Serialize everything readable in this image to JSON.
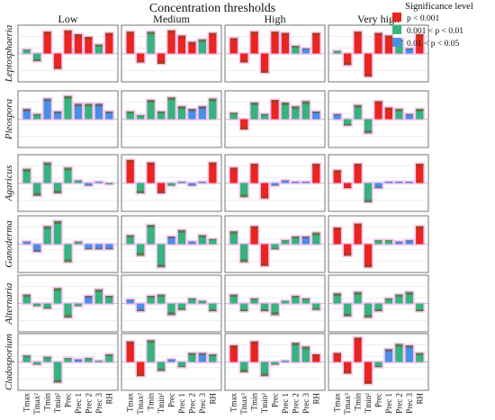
{
  "chart_data": {
    "type": "bar",
    "title": "Concentration thresholds",
    "panel_columns": [
      "Low",
      "Medium",
      "High",
      "Very high"
    ],
    "panel_rows": [
      "Leptosphaeria",
      "Pleospora",
      "Agaricus",
      "Ganoderma",
      "Alternaria",
      "Cladosporium"
    ],
    "categories": [
      "Tmax",
      "Tmax²",
      "Tmin",
      "Tmin²",
      "Prec",
      "Prec 1",
      "Prec 2",
      "Prec 3",
      "RH"
    ],
    "legend": {
      "title": "Significance level",
      "entries": [
        {
          "label": "p < 0.001",
          "color": "#e8261f"
        },
        {
          "label": "0.001 < p < 0.01",
          "color": "#36b37e"
        },
        {
          "label": "0.01 < p < 0.05",
          "color": "#4a8fe6"
        }
      ]
    },
    "series_colors": [
      "#e8261f",
      "#36b37e",
      "#4a8fe6"
    ],
    "accent_colors": {
      "outline": "#f6c6f2",
      "lag_marker": "#7a4a1a"
    },
    "ylim": [
      -1,
      1
    ],
    "panels": [
      [
        {
          "values": [
            0.15,
            -0.3,
            0.85,
            -0.6,
            0.9,
            0.75,
            0.65,
            0.35,
            0.8
          ],
          "sig": [
            1,
            1,
            0,
            0,
            0,
            0,
            0,
            1,
            0
          ]
        },
        {
          "values": [
            0.4,
            0.2,
            0.8,
            0.3,
            0.9,
            0.6,
            0.6,
            0.6,
            0.3
          ],
          "sig": [
            2,
            1,
            2,
            2,
            1,
            2,
            1,
            2,
            2
          ]
        },
        {
          "values": [
            0.55,
            -0.5,
            0.8,
            -0.4,
            0.6,
            0.1,
            -0.1,
            0.05,
            -0.05
          ],
          "sig": [
            1,
            1,
            1,
            1,
            1,
            1,
            2,
            2,
            1
          ]
        },
        {
          "values": [
            0.1,
            -0.3,
            0.7,
            0.9,
            -0.7,
            0.1,
            -0.2,
            -0.2,
            -0.2
          ],
          "sig": [
            2,
            2,
            1,
            1,
            1,
            1,
            2,
            2,
            2
          ]
        },
        {
          "values": [
            0.35,
            -0.1,
            -0.2,
            0.6,
            -0.55,
            -0.1,
            0.3,
            0.55,
            0.3
          ],
          "sig": [
            1,
            1,
            1,
            1,
            1,
            1,
            2,
            1,
            1
          ]
        },
        {
          "values": [
            0.25,
            -0.1,
            0.2,
            -0.8,
            0.15,
            0.1,
            0.15,
            0.05,
            0.3
          ],
          "sig": [
            1,
            1,
            1,
            1,
            1,
            2,
            1,
            1,
            1
          ]
        }
      ],
      [
        {
          "values": [
            0.85,
            -0.35,
            0.85,
            -0.4,
            0.9,
            0.7,
            0.45,
            0.55,
            0.8
          ],
          "sig": [
            0,
            0,
            1,
            0,
            0,
            0,
            0,
            1,
            0
          ]
        },
        {
          "values": [
            0.3,
            0.15,
            0.75,
            0.3,
            0.85,
            0.5,
            0.4,
            0.5,
            0.8
          ],
          "sig": [
            1,
            1,
            1,
            1,
            1,
            1,
            2,
            2,
            1
          ]
        },
        {
          "values": [
            0.9,
            -0.4,
            0.8,
            -0.4,
            -0.1,
            0.05,
            -0.1,
            0.05,
            0.8
          ],
          "sig": [
            0,
            1,
            0,
            0,
            1,
            2,
            2,
            2,
            0
          ]
        },
        {
          "values": [
            0.35,
            -0.45,
            0.75,
            -0.9,
            0.3,
            0.55,
            0.1,
            0.35,
            0.2
          ],
          "sig": [
            1,
            1,
            1,
            1,
            2,
            1,
            2,
            1,
            1
          ]
        },
        {
          "values": [
            0.15,
            -0.3,
            0.3,
            0.35,
            -0.45,
            -0.25,
            0.2,
            0.1,
            -0.3
          ],
          "sig": [
            2,
            2,
            1,
            1,
            1,
            1,
            1,
            1,
            1
          ]
        },
        {
          "values": [
            0.8,
            -0.55,
            0.85,
            -0.35,
            0.1,
            -0.2,
            0.35,
            0.35,
            0.3
          ],
          "sig": [
            0,
            0,
            1,
            1,
            2,
            1,
            1,
            2,
            1
          ]
        }
      ],
      [
        {
          "values": [
            0.6,
            -0.35,
            0.85,
            -0.75,
            0.85,
            0.8,
            0.3,
            0.2,
            0.8
          ],
          "sig": [
            0,
            0,
            0,
            0,
            0,
            0,
            1,
            2,
            0
          ]
        },
        {
          "values": [
            0.25,
            -0.4,
            0.65,
            0.2,
            0.75,
            0.65,
            0.5,
            0.7,
            0.3
          ],
          "sig": [
            1,
            0,
            1,
            1,
            0,
            1,
            1,
            1,
            2
          ]
        },
        {
          "values": [
            0.6,
            -0.55,
            0.75,
            -0.6,
            -0.1,
            0.1,
            0.05,
            0.05,
            0.75
          ],
          "sig": [
            0,
            1,
            0,
            0,
            2,
            2,
            2,
            2,
            0
          ]
        },
        {
          "values": [
            0.5,
            -0.7,
            0.7,
            -0.85,
            -0.2,
            0.15,
            0.3,
            0.3,
            0.45
          ],
          "sig": [
            1,
            1,
            0,
            0,
            1,
            1,
            1,
            2,
            1
          ]
        },
        {
          "values": [
            0.35,
            -0.3,
            0.2,
            -0.3,
            -0.45,
            0.1,
            0.3,
            0.2,
            -0.25
          ],
          "sig": [
            1,
            1,
            1,
            1,
            1,
            1,
            1,
            1,
            1
          ]
        },
        {
          "values": [
            0.65,
            -0.4,
            0.8,
            -0.55,
            -0.1,
            0.05,
            0.75,
            0.6,
            0.3
          ],
          "sig": [
            0,
            1,
            0,
            1,
            1,
            2,
            1,
            1,
            0
          ]
        }
      ],
      [
        {
          "values": [
            0.1,
            -0.45,
            0.85,
            -0.9,
            0.8,
            0.7,
            0.55,
            0.2,
            0.75
          ],
          "sig": [
            1,
            0,
            0,
            0,
            0,
            0,
            1,
            2,
            0
          ]
        },
        {
          "values": [
            0.2,
            -0.25,
            0.55,
            -0.55,
            0.7,
            0.45,
            0.4,
            0.2,
            0.4
          ],
          "sig": [
            2,
            1,
            1,
            1,
            0,
            0,
            1,
            2,
            1
          ]
        },
        {
          "values": [
            0.5,
            -0.2,
            0.75,
            -0.75,
            -0.2,
            0.05,
            0.05,
            0.05,
            0.75
          ],
          "sig": [
            0,
            0,
            0,
            1,
            2,
            2,
            2,
            2,
            0
          ]
        },
        {
          "values": [
            0.65,
            -0.45,
            0.8,
            -0.9,
            0.15,
            0.15,
            0.1,
            0.15,
            0.7
          ],
          "sig": [
            0,
            0,
            0,
            0,
            1,
            1,
            2,
            2,
            0
          ]
        },
        {
          "values": [
            0.4,
            -0.5,
            0.45,
            -0.55,
            -0.3,
            0.2,
            0.35,
            0.45,
            -0.3
          ],
          "sig": [
            1,
            1,
            1,
            1,
            1,
            1,
            1,
            1,
            1
          ]
        },
        {
          "values": [
            0.35,
            -0.45,
            0.95,
            -0.85,
            -0.2,
            0.5,
            0.7,
            0.65,
            0.35
          ],
          "sig": [
            0,
            0,
            0,
            0,
            1,
            2,
            1,
            2,
            1
          ]
        }
      ]
    ]
  }
}
